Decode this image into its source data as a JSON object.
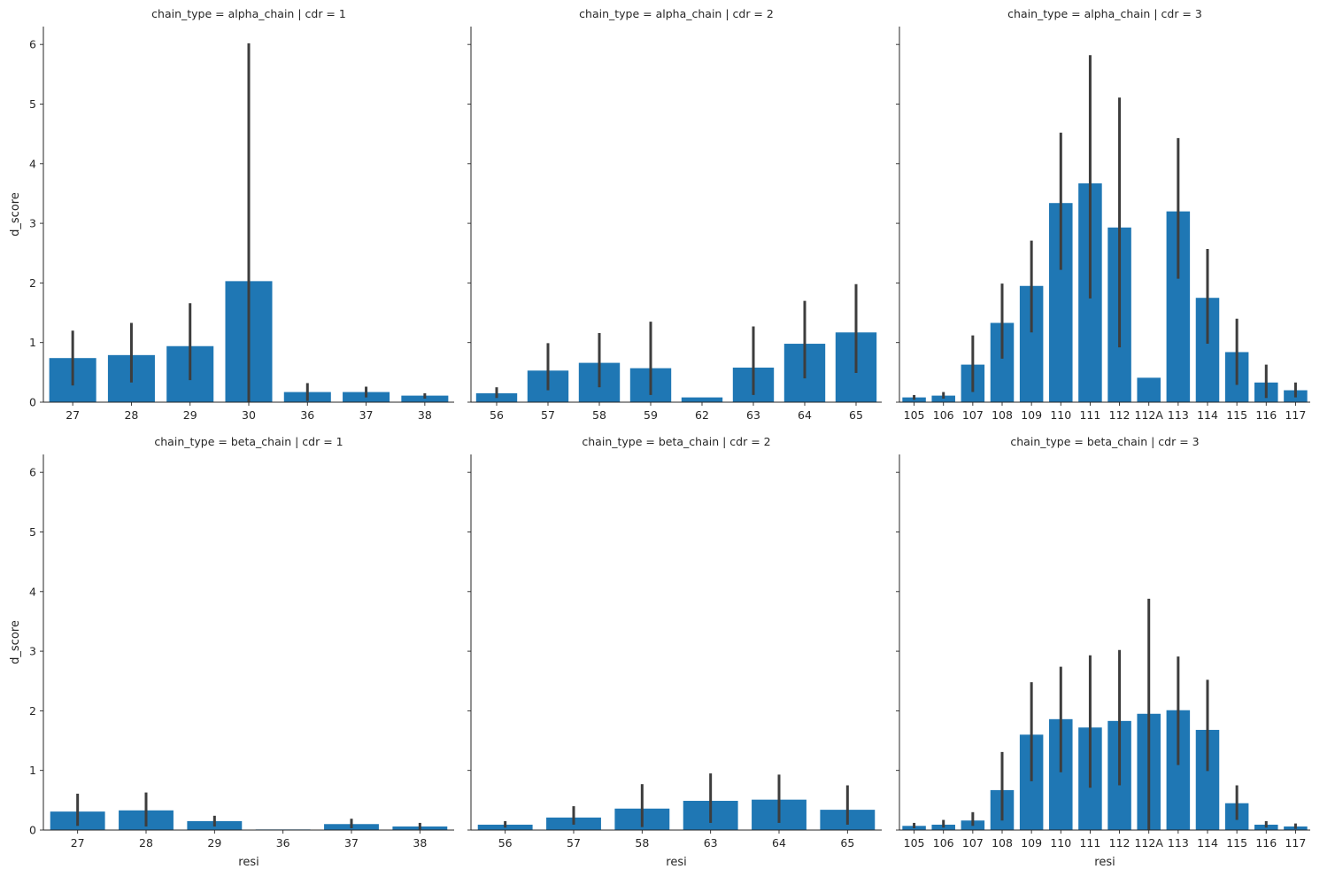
{
  "chart_data": {
    "type": "bar",
    "layout": "facet-grid",
    "xlabel": "resi",
    "ylabel": "d_score",
    "ylim": [
      0,
      6.3
    ],
    "yticks": [
      0,
      1,
      2,
      3,
      4,
      5,
      6
    ],
    "bar_color": "#1f77b4",
    "errorbar_color": "#3d3d3d",
    "facets": [
      {
        "title": "chain_type = alpha_chain | cdr = 1",
        "categories": [
          "27",
          "28",
          "29",
          "30",
          "36",
          "37",
          "38"
        ],
        "values": [
          0.74,
          0.79,
          0.94,
          2.03,
          0.17,
          0.17,
          0.11
        ],
        "ci_low": [
          0.28,
          0.33,
          0.37,
          0.0,
          0.02,
          0.08,
          0.06
        ],
        "ci_high": [
          1.2,
          1.33,
          1.66,
          6.02,
          0.32,
          0.26,
          0.15
        ]
      },
      {
        "title": "chain_type = alpha_chain | cdr = 2",
        "categories": [
          "56",
          "57",
          "58",
          "59",
          "62",
          "63",
          "64",
          "65"
        ],
        "values": [
          0.15,
          0.53,
          0.66,
          0.57,
          0.08,
          0.58,
          0.98,
          1.17
        ],
        "ci_low": [
          0.07,
          0.2,
          0.25,
          0.12,
          0.08,
          0.12,
          0.4,
          0.49
        ],
        "ci_high": [
          0.25,
          0.99,
          1.16,
          1.35,
          0.08,
          1.27,
          1.7,
          1.98
        ]
      },
      {
        "title": "chain_type = alpha_chain | cdr = 3",
        "categories": [
          "105",
          "106",
          "107",
          "108",
          "109",
          "110",
          "111",
          "112",
          "112A",
          "113",
          "114",
          "115",
          "116",
          "117"
        ],
        "values": [
          0.08,
          0.11,
          0.63,
          1.33,
          1.95,
          3.34,
          3.67,
          2.93,
          0.41,
          3.2,
          1.75,
          0.84,
          0.33,
          0.2
        ],
        "ci_low": [
          0.04,
          0.06,
          0.17,
          0.73,
          1.17,
          2.22,
          1.74,
          0.92,
          0.41,
          2.07,
          0.98,
          0.29,
          0.07,
          0.08
        ],
        "ci_high": [
          0.12,
          0.17,
          1.12,
          1.99,
          2.71,
          4.52,
          5.82,
          5.11,
          0.41,
          4.43,
          2.57,
          1.4,
          0.63,
          0.33
        ]
      },
      {
        "title": "chain_type = beta_chain | cdr = 1",
        "categories": [
          "27",
          "28",
          "29",
          "36",
          "37",
          "38"
        ],
        "values": [
          0.31,
          0.33,
          0.15,
          0.01,
          0.1,
          0.06
        ],
        "ci_low": [
          0.07,
          0.06,
          0.06,
          0.01,
          0.03,
          0.01
        ],
        "ci_high": [
          0.61,
          0.63,
          0.24,
          0.01,
          0.19,
          0.12
        ]
      },
      {
        "title": "chain_type = beta_chain | cdr = 2",
        "categories": [
          "56",
          "57",
          "58",
          "63",
          "64",
          "65"
        ],
        "values": [
          0.09,
          0.21,
          0.36,
          0.49,
          0.51,
          0.34
        ],
        "ci_low": [
          0.04,
          0.09,
          0.05,
          0.12,
          0.12,
          0.09
        ],
        "ci_high": [
          0.15,
          0.4,
          0.77,
          0.95,
          0.93,
          0.75
        ]
      },
      {
        "title": "chain_type = beta_chain | cdr = 3",
        "categories": [
          "105",
          "106",
          "107",
          "108",
          "109",
          "110",
          "111",
          "112",
          "112A",
          "113",
          "114",
          "115",
          "116",
          "117"
        ],
        "values": [
          0.07,
          0.09,
          0.16,
          0.67,
          1.6,
          1.86,
          1.72,
          1.83,
          1.95,
          2.01,
          1.68,
          0.45,
          0.09,
          0.06
        ],
        "ci_low": [
          0.03,
          0.04,
          0.07,
          0.16,
          0.82,
          0.97,
          0.71,
          0.75,
          0.0,
          1.09,
          0.99,
          0.17,
          0.04,
          0.02
        ],
        "ci_high": [
          0.12,
          0.17,
          0.3,
          1.31,
          2.48,
          2.74,
          2.93,
          3.02,
          3.88,
          2.91,
          2.52,
          0.75,
          0.15,
          0.11
        ]
      }
    ]
  }
}
